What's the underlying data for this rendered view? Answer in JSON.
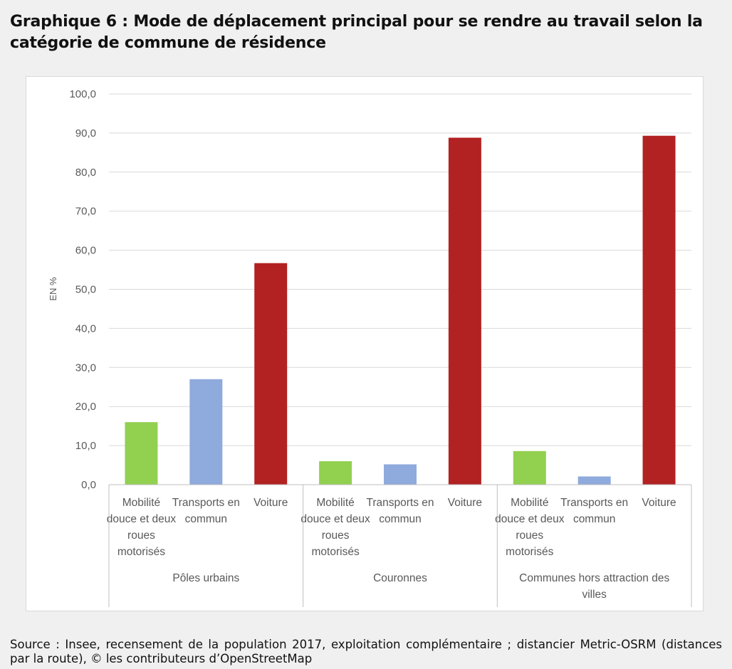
{
  "page": {
    "title": "Graphique 6 : Mode de déplacement principal pour se rendre au travail selon la catégorie de commune de résidence",
    "source": "Source : Insee, recensement de la population 2017, exploitation complémentaire ; distancier Metric-OSRM (distances par la route), © les contributeurs d’OpenStreetMap"
  },
  "chart_data": {
    "type": "bar",
    "title": "",
    "ylabel": "EN %",
    "ylim": [
      0,
      100
    ],
    "ytick_step": 10,
    "ytick_labels": [
      "0,0",
      "10,0",
      "20,0",
      "30,0",
      "40,0",
      "50,0",
      "60,0",
      "70,0",
      "80,0",
      "90,0",
      "100,0"
    ],
    "grid": true,
    "legend": "none",
    "groups": [
      {
        "name": "Pôles urbains",
        "bars": [
          {
            "label": "Mobilité douce et deux roues motorisés",
            "value": 16.0,
            "color": "#92d050"
          },
          {
            "label": "Transports en commun",
            "value": 27.0,
            "color": "#8faadc"
          },
          {
            "label": "Voiture",
            "value": 56.7,
            "color": "#b22222"
          }
        ]
      },
      {
        "name": "Couronnes",
        "bars": [
          {
            "label": "Mobilité douce et deux roues motorisés",
            "value": 6.0,
            "color": "#92d050"
          },
          {
            "label": "Transports en commun",
            "value": 5.2,
            "color": "#8faadc"
          },
          {
            "label": "Voiture",
            "value": 88.8,
            "color": "#b22222"
          }
        ]
      },
      {
        "name": "Communes hors attraction des villes",
        "bars": [
          {
            "label": "Mobilité douce et deux roues motorisés",
            "value": 8.6,
            "color": "#92d050"
          },
          {
            "label": "Transports en commun",
            "value": 2.1,
            "color": "#8faadc"
          },
          {
            "label": "Voiture",
            "value": 89.3,
            "color": "#b22222"
          }
        ]
      }
    ]
  }
}
